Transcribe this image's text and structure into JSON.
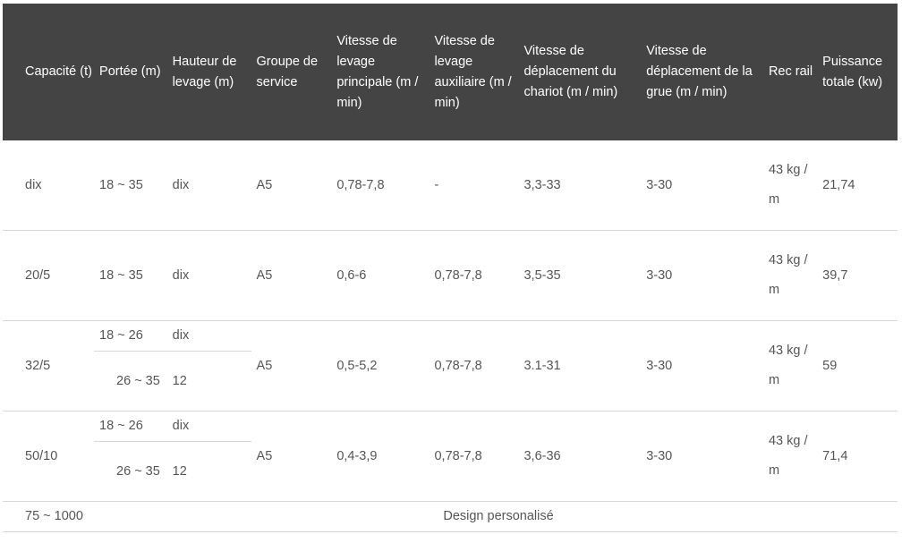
{
  "headers": [
    "Capacité (t)",
    "Portée (m)",
    "Hauteur de levage (m)",
    "Groupe de service",
    "Vitesse de levage principale (m / min)",
    "Vitesse de levage auxiliaire (m / min)",
    "Vitesse de déplacement du chariot (m / min)",
    "Vitesse de déplacement de la grue (m / min)",
    "Rec rail",
    "Puissance totale (kw)"
  ],
  "rows": [
    {
      "capacite": "dix",
      "portee": "18 ~ 35",
      "hauteur": "dix",
      "groupe": "A5",
      "levage_principal": "0,78-7,8",
      "levage_aux": "-",
      "chariot": "3,3-33",
      "grue": "3-30",
      "rail": "43 kg / m",
      "puissance": "21,74"
    },
    {
      "capacite": "20/5",
      "portee": "18 ~ 35",
      "hauteur": "dix",
      "groupe": "A5",
      "levage_principal": "0,6-6",
      "levage_aux": "0,78-7,8",
      "chariot": "3,5-35",
      "grue": "3-30",
      "rail": "43 kg / m",
      "puissance": "39,7"
    },
    {
      "capacite": "32/5",
      "portee_a": "18 ~ 26",
      "hauteur_a": "dix",
      "portee_b": "26 ~ 35",
      "hauteur_b": "12",
      "groupe": "A5",
      "levage_principal": "0,5-5,2",
      "levage_aux": "0,78-7,8",
      "chariot": "3.1-31",
      "grue": "3-30",
      "rail": "43 kg / m",
      "puissance": "59"
    },
    {
      "capacite": "50/10",
      "portee_a": "18 ~ 26",
      "hauteur_a": "dix",
      "portee_b": "26 ~ 35",
      "hauteur_b": "12",
      "groupe": "A5",
      "levage_principal": "0,4-3,9",
      "levage_aux": "0,78-7,8",
      "chariot": "3,6-36",
      "grue": "3-30",
      "rail": "43 kg / m",
      "puissance": "71,4"
    }
  ],
  "footer": {
    "capacite": "75 ~ 1000",
    "note": "Design personalisé"
  }
}
